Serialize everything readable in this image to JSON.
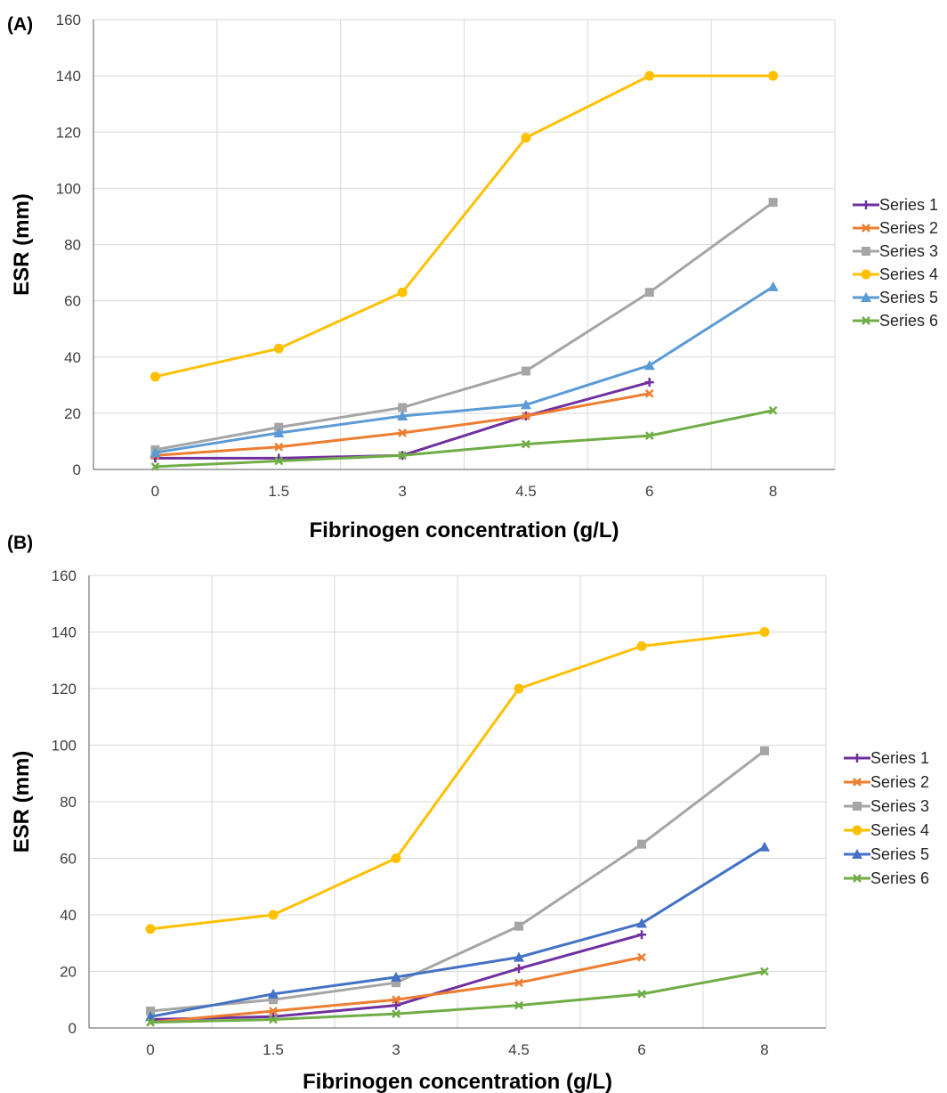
{
  "chart_data": [
    {
      "type": "line",
      "panel_label": "(A)",
      "categories": [
        "0",
        "1.5",
        "3",
        "4.5",
        "6",
        "8"
      ],
      "xlabel": "Fibrinogen concentration (g/L)",
      "ylabel": "ESR (mm)",
      "ylim": [
        0,
        160
      ],
      "yticks": [
        0,
        20,
        40,
        60,
        80,
        100,
        120,
        140,
        160
      ],
      "grid": true,
      "legend_position": "right",
      "series": [
        {
          "name": "Series 1",
          "color": "#7030a0",
          "marker": "plus",
          "values": [
            4,
            4,
            5,
            19,
            31,
            null
          ]
        },
        {
          "name": "Series 2",
          "color": "#ed7d31",
          "marker": "x",
          "values": [
            5,
            8,
            13,
            19,
            27,
            null
          ]
        },
        {
          "name": "Series 3",
          "color": "#a5a5a5",
          "marker": "square",
          "values": [
            7,
            15,
            22,
            35,
            63,
            95
          ]
        },
        {
          "name": "Series 4",
          "color": "#ffc000",
          "marker": "circle",
          "values": [
            33,
            43,
            63,
            118,
            140,
            140
          ]
        },
        {
          "name": "Series 5",
          "color": "#5b9bd5",
          "marker": "triangle",
          "values": [
            6,
            13,
            19,
            23,
            37,
            65
          ]
        },
        {
          "name": "Series 6",
          "color": "#70ad47",
          "marker": "x",
          "values": [
            1,
            3,
            5,
            9,
            12,
            21
          ]
        }
      ]
    },
    {
      "type": "line",
      "panel_label": "(B)",
      "categories": [
        "0",
        "1.5",
        "3",
        "4.5",
        "6",
        "8"
      ],
      "xlabel": "Fibrinogen concentration (g/L)",
      "ylabel": "ESR (mm)",
      "ylim": [
        0,
        160
      ],
      "yticks": [
        0,
        20,
        40,
        60,
        80,
        100,
        120,
        140,
        160
      ],
      "grid": true,
      "legend_position": "right",
      "series": [
        {
          "name": "Series 1",
          "color": "#7030a0",
          "marker": "plus",
          "values": [
            3,
            4,
            8,
            21,
            33,
            null
          ]
        },
        {
          "name": "Series 2",
          "color": "#ed7d31",
          "marker": "x",
          "values": [
            2,
            6,
            10,
            16,
            25,
            null
          ]
        },
        {
          "name": "Series 3",
          "color": "#a5a5a5",
          "marker": "square",
          "values": [
            6,
            10,
            16,
            36,
            65,
            98
          ]
        },
        {
          "name": "Series 4",
          "color": "#ffc000",
          "marker": "circle",
          "values": [
            35,
            40,
            60,
            120,
            135,
            140
          ]
        },
        {
          "name": "Series 5",
          "color": "#4472c4",
          "marker": "triangle",
          "values": [
            4,
            12,
            18,
            25,
            37,
            64
          ]
        },
        {
          "name": "Series 6",
          "color": "#70ad47",
          "marker": "x",
          "values": [
            2,
            3,
            5,
            8,
            12,
            20
          ]
        }
      ]
    }
  ]
}
